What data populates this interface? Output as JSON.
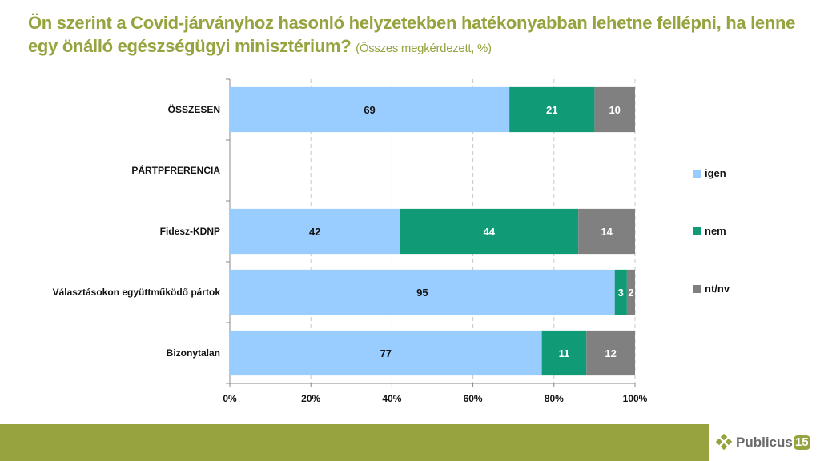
{
  "header": {
    "title": "Ön szerint a Covid-járványhoz hasonló helyzetekben hatékonyabban lehetne fellépni, ha lenne egy önálló egészségügyi minisztérium?",
    "subtitle": "(Összes megkérdezett, %)"
  },
  "chart_data": {
    "type": "bar",
    "orientation": "horizontal",
    "stacked": "percent",
    "title": "Ön szerint a Covid-járványhoz hasonló helyzetekben hatékonyabban lehetne fellépni, ha lenne egy önálló egészségügyi minisztérium? (Összes megkérdezett, %)",
    "categories": [
      "ÖSSZESEN",
      "PÁRTPFRERENCIA",
      "Fidesz-KDNP",
      "Választásokon együttműködő pártok",
      "Bizonytalan"
    ],
    "series": [
      {
        "name": "igen",
        "color": "#99CCFF",
        "label_color": "#111111",
        "values": [
          69,
          null,
          42,
          95,
          77
        ]
      },
      {
        "name": "nem",
        "color": "#109A76",
        "label_color": "#FFFFFF",
        "values": [
          21,
          null,
          44,
          3,
          11
        ]
      },
      {
        "name": "nt/nv",
        "color": "#808080",
        "label_color": "#FFFFFF",
        "values": [
          10,
          null,
          14,
          2,
          12
        ]
      }
    ],
    "xlim": [
      0,
      100
    ],
    "xticks": [
      "0%",
      "20%",
      "40%",
      "60%",
      "80%",
      "100%"
    ],
    "grid": "vertical-dashed",
    "legend_position": "right",
    "xlabel": "",
    "ylabel": ""
  },
  "footer": {
    "logo_text": "Publicus",
    "logo_number": "15",
    "band_color": "#97A33F"
  }
}
